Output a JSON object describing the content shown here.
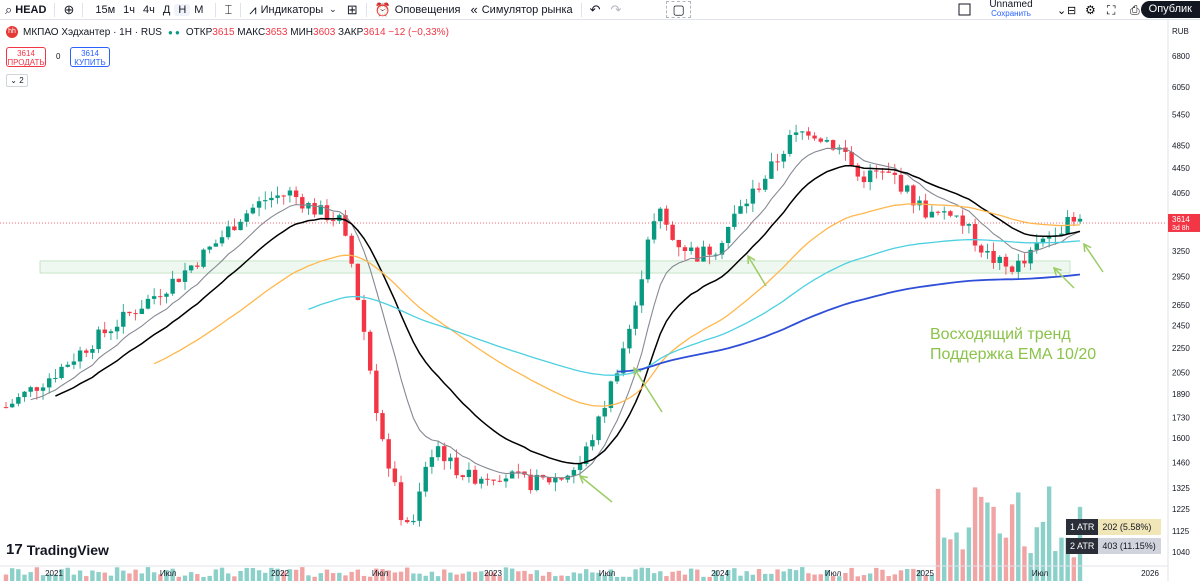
{
  "toolbar": {
    "symbol": "HEAD",
    "intervals": [
      "15м",
      "1ч",
      "4ч",
      "Д",
      "Н",
      "М"
    ],
    "active_interval": "Н",
    "indicators_label": "Индикаторы",
    "alerts_label": "Оповещения",
    "replay_label": "Симулятор рынка",
    "layout_name": "Unnamed",
    "layout_status": "Сохранить",
    "publish_label": "Опублик"
  },
  "legend": {
    "title": "МКПАО Хэдхантер · 1Н · RUS",
    "open_label": "ОТКР",
    "open": "3615",
    "high_label": "МАКС",
    "high": "3653",
    "low_label": "МИН",
    "low": "3603",
    "close_label": "ЗАКР",
    "close": "3614",
    "change": "−12 (−0,33%)",
    "sell_price": "3614",
    "sell_label": "ПРОДАТЬ",
    "buy_price": "3614",
    "buy_label": "КУПИТЬ",
    "spread": "0",
    "collapse_count": "2"
  },
  "price_axis": {
    "currency": "RUB",
    "current_price": "3614",
    "countdown": "3d 8h"
  },
  "annotation": {
    "line1": "Восходящий тренд",
    "line2": "Поддержка EMA 10/20"
  },
  "atr": [
    {
      "label": "1 ATR",
      "value": "202 (5.58%)"
    },
    {
      "label": "2 ATR",
      "value": "403 (11.15%)"
    }
  ],
  "branding": "TradingView",
  "colors": {
    "up": "#089981",
    "down": "#f23645",
    "ema10": "#868993",
    "ema20": "#000000",
    "ema50": "#ffb74d",
    "ema100": "#4dd0e1",
    "ema200": "#2f4fd8",
    "arrow": "#9ccc65",
    "annotation": "#8bc34a"
  },
  "chart_data": {
    "type": "candlestick",
    "timeframe": "1W",
    "y_scale": "log",
    "yticks": [
      1040,
      1125,
      1225,
      1325,
      1460,
      1600,
      1730,
      1890,
      2050,
      2250,
      2450,
      2650,
      2950,
      3250,
      3614,
      4050,
      4450,
      4850,
      5450,
      6050,
      6800
    ],
    "xticks": [
      "2021",
      "Июл",
      "2022",
      "Июл",
      "2023",
      "Июл",
      "2024",
      "Июл",
      "2025",
      "Июл",
      "2026"
    ],
    "price_path": [
      [
        0,
        1800
      ],
      [
        8,
        2050
      ],
      [
        15,
        2350
      ],
      [
        22,
        2650
      ],
      [
        28,
        2950
      ],
      [
        34,
        3350
      ],
      [
        38,
        3700
      ],
      [
        42,
        3950
      ],
      [
        46,
        4050
      ],
      [
        50,
        3800
      ],
      [
        54,
        3650
      ],
      [
        56,
        3100
      ],
      [
        58,
        2400
      ],
      [
        60,
        1800
      ],
      [
        62,
        1450
      ],
      [
        64,
        1200
      ],
      [
        66,
        1150
      ],
      [
        68,
        1450
      ],
      [
        70,
        1550
      ],
      [
        72,
        1450
      ],
      [
        75,
        1380
      ],
      [
        80,
        1400
      ],
      [
        85,
        1350
      ],
      [
        90,
        1380
      ],
      [
        93,
        1450
      ],
      [
        96,
        1700
      ],
      [
        99,
        2100
      ],
      [
        102,
        2600
      ],
      [
        104,
        3450
      ],
      [
        106,
        3750
      ],
      [
        108,
        3400
      ],
      [
        110,
        3300
      ],
      [
        112,
        3200
      ],
      [
        115,
        3300
      ],
      [
        118,
        3700
      ],
      [
        121,
        4050
      ],
      [
        124,
        4450
      ],
      [
        127,
        4950
      ],
      [
        130,
        5150
      ],
      [
        133,
        4950
      ],
      [
        136,
        4700
      ],
      [
        138,
        4300
      ],
      [
        141,
        4350
      ],
      [
        144,
        4300
      ],
      [
        147,
        3950
      ],
      [
        150,
        3700
      ],
      [
        153,
        3800
      ],
      [
        156,
        3500
      ],
      [
        159,
        3200
      ],
      [
        162,
        3050
      ],
      [
        165,
        3100
      ],
      [
        167,
        3300
      ],
      [
        170,
        3550
      ],
      [
        172,
        3600
      ],
      [
        174,
        3614
      ]
    ],
    "series": [
      {
        "name": "EMA 10",
        "color": "#868993"
      },
      {
        "name": "EMA 20",
        "color": "#000000"
      },
      {
        "name": "EMA 50",
        "color": "#ffb74d"
      },
      {
        "name": "EMA 100",
        "color": "#4dd0e1"
      },
      {
        "name": "EMA 200",
        "color": "#2f4fd8"
      }
    ],
    "support_zone": [
      2990,
      3130
    ],
    "volume_present": true
  }
}
